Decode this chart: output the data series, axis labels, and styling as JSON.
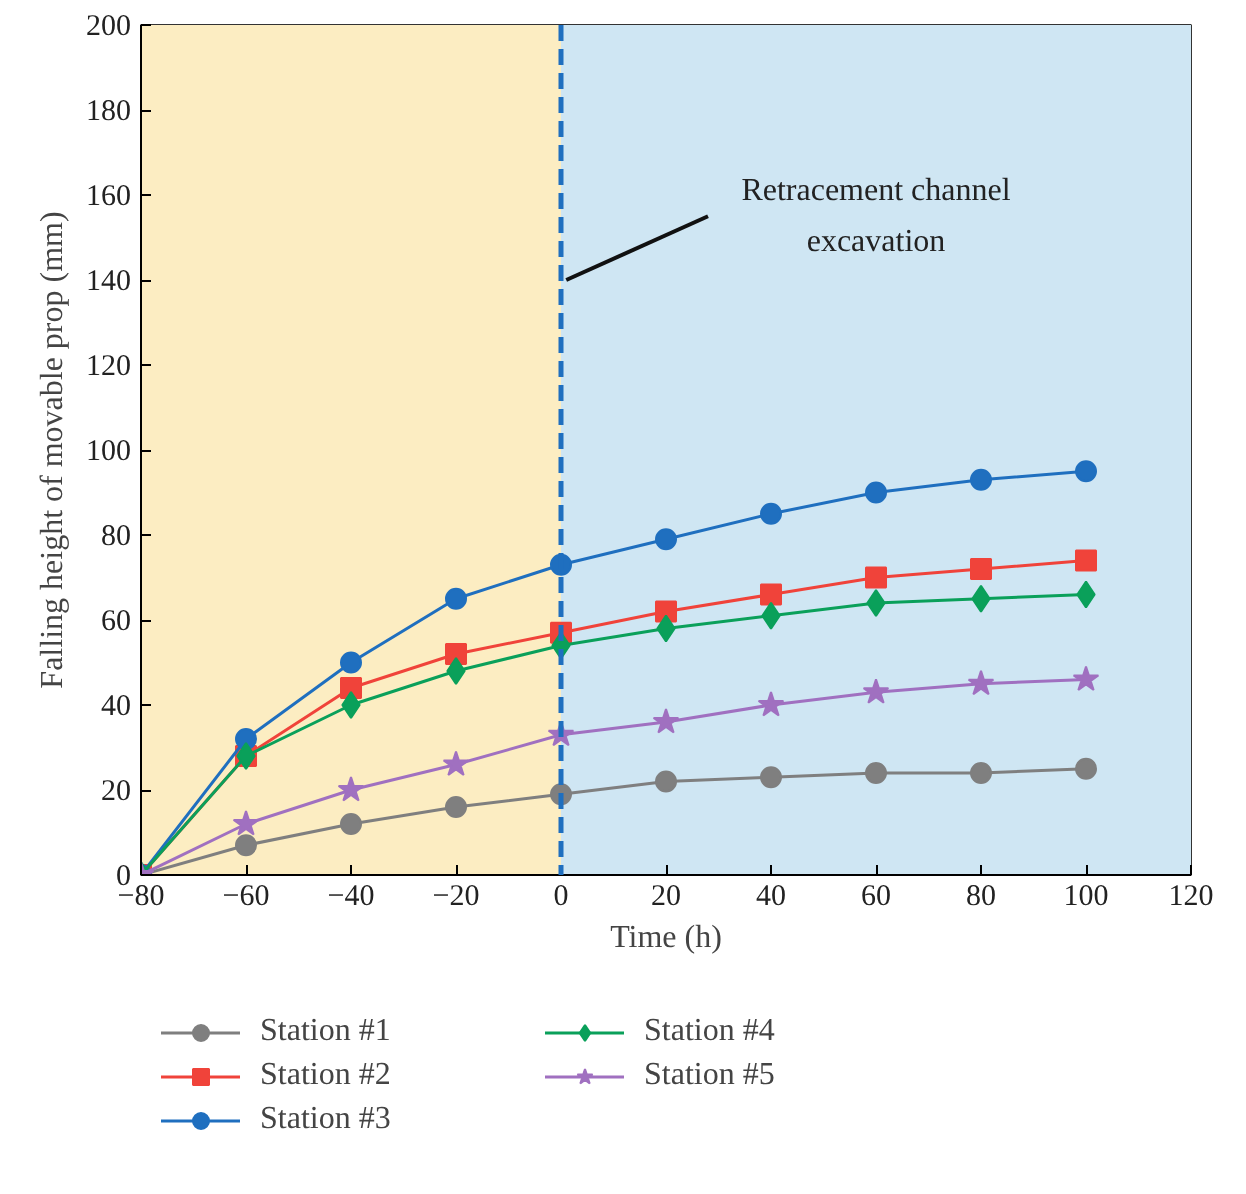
{
  "chart_data": {
    "type": "line",
    "xlabel": "Time (h)",
    "ylabel": "Falling height of movable prop (mm)",
    "x": [
      -80,
      -60,
      -40,
      -20,
      0,
      20,
      40,
      60,
      80,
      100
    ],
    "series": [
      {
        "name": "Station #1",
        "color": "#7f7f7f",
        "marker": "circle",
        "values": [
          0,
          7,
          12,
          16,
          19,
          22,
          23,
          24,
          24,
          25
        ]
      },
      {
        "name": "Station #2",
        "color": "#f0433a",
        "marker": "square",
        "values": [
          0,
          28,
          44,
          52,
          57,
          62,
          66,
          70,
          72,
          74
        ]
      },
      {
        "name": "Station #3",
        "color": "#1f6fbf",
        "marker": "circle",
        "values": [
          0,
          32,
          50,
          65,
          73,
          79,
          85,
          90,
          93,
          95
        ]
      },
      {
        "name": "Station #4",
        "color": "#0aa05a",
        "marker": "diamond",
        "values": [
          0,
          28,
          40,
          48,
          54,
          58,
          61,
          64,
          65,
          66
        ]
      },
      {
        "name": "Station #5",
        "color": "#a070c0",
        "marker": "star",
        "values": [
          0,
          12,
          20,
          26,
          33,
          36,
          40,
          43,
          45,
          46
        ]
      }
    ],
    "xlim": [
      -80,
      120
    ],
    "xticks": [
      -80,
      -60,
      -40,
      -20,
      0,
      20,
      40,
      60,
      80,
      100,
      120
    ],
    "ylim": [
      0,
      200
    ],
    "yticks": [
      0,
      20,
      40,
      60,
      80,
      100,
      120,
      140,
      160,
      180,
      200
    ],
    "bands": [
      {
        "axis": "x",
        "from": -80,
        "to": 0,
        "color": "#fcedc2"
      },
      {
        "axis": "x",
        "from": 0,
        "to": 120,
        "color": "#cfe6f3"
      }
    ],
    "ref_lines": [
      {
        "axis": "x",
        "value": 0,
        "color": "#1f6fbf",
        "line_style": "dashed"
      }
    ],
    "annotations": [
      {
        "text": "Retracement channel excavation",
        "x": 0,
        "y": 140
      }
    ],
    "legend": "bottom",
    "line_style": "solid"
  }
}
